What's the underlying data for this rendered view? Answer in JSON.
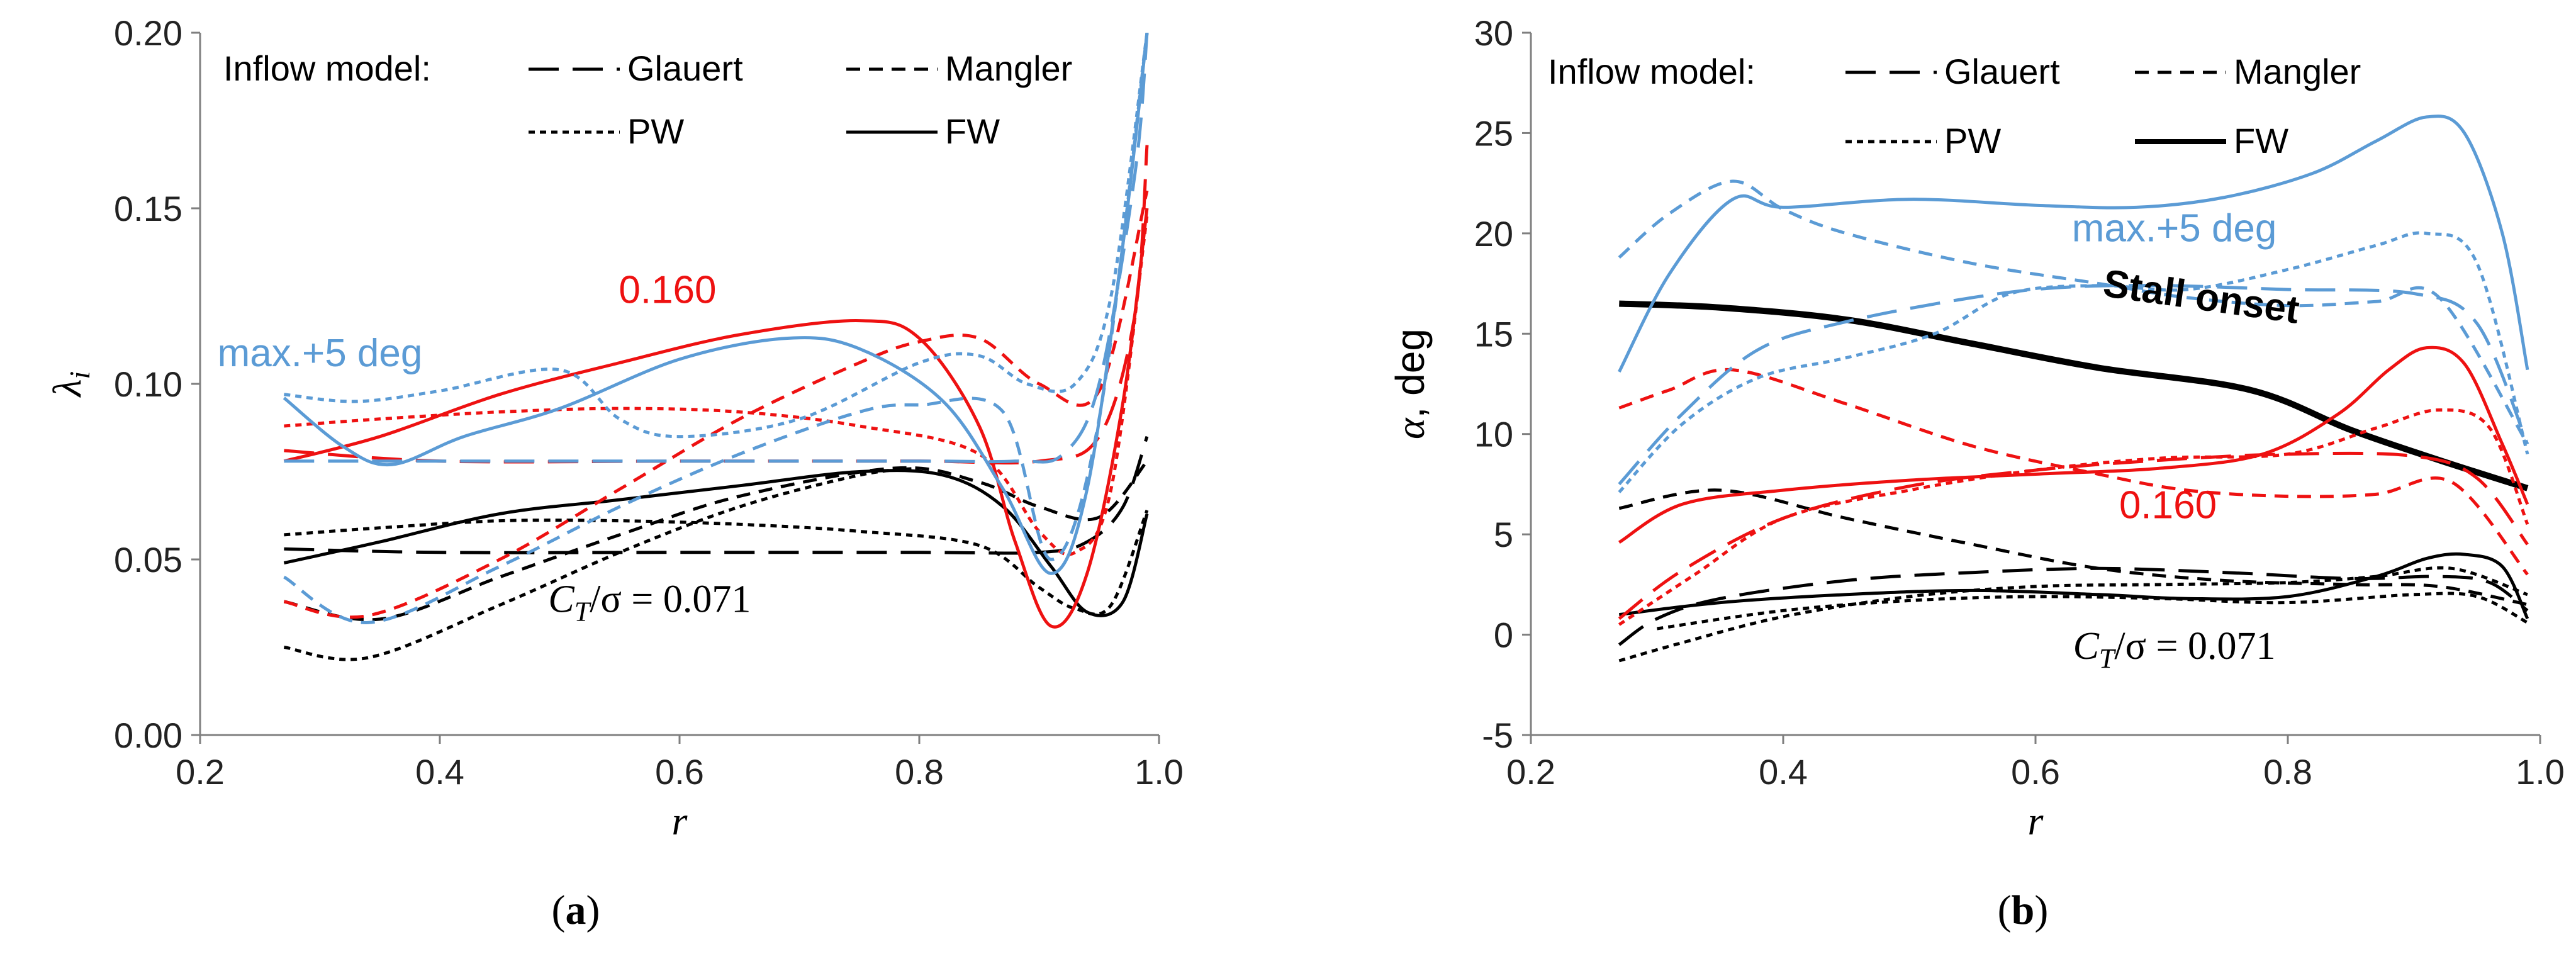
{
  "colors": {
    "black": "#000000",
    "red": "#ee1111",
    "blue": "#5b9bd5",
    "frame": "#7f7f7f"
  },
  "styles": {
    "Glauert": {
      "dash": "48,22",
      "width": 5
    },
    "Mangler": {
      "dash": "22,14",
      "width": 5
    },
    "PW": {
      "dash": "10,8",
      "width": 5
    },
    "FW": {
      "dash": "",
      "width": 5
    }
  },
  "chart_data": [
    {
      "type": "line",
      "panel": "a",
      "caption_label": "a",
      "xlabel": "r",
      "ylabel": "λ",
      "ylabel_sub": "i",
      "xlim": [
        0.2,
        1.0
      ],
      "ylim": [
        0.0,
        0.2
      ],
      "x_ticks": [
        "0.2",
        "0.4",
        "0.6",
        "0.8",
        "1.0"
      ],
      "x_tick_values": [
        0.2,
        0.4,
        0.6,
        0.8,
        1.0
      ],
      "y_ticks": [
        "0.00",
        "0.05",
        "0.10",
        "0.15",
        "0.20"
      ],
      "y_tick_values": [
        0.0,
        0.05,
        0.1,
        0.15,
        0.2
      ],
      "legend": {
        "title": "Inflow model:",
        "entries": [
          {
            "label": "Glauert",
            "model": "Glauert"
          },
          {
            "label": "Mangler",
            "model": "Mangler"
          },
          {
            "label": "PW",
            "model": "PW"
          },
          {
            "label": "FW",
            "model": "FW"
          }
        ]
      },
      "annotations": [
        {
          "text": "0.160",
          "color": "red",
          "x": 0.59,
          "y": 0.123
        },
        {
          "text": "max.+5 deg",
          "color": "blue",
          "x": 0.3,
          "y": 0.105
        }
      ],
      "math_annotation": {
        "prefix": "C",
        "sub": "T",
        "rest": "/σ = 0.071",
        "x": 0.575,
        "y": 0.035
      },
      "series": [
        {
          "name": "CT/σ=0.071 Glauert",
          "color": "black",
          "model": "Glauert",
          "x": [
            0.27,
            0.4,
            0.6,
            0.8,
            0.9,
            0.94,
            0.97,
            0.99
          ],
          "y": [
            0.053,
            0.052,
            0.052,
            0.052,
            0.052,
            0.055,
            0.065,
            0.085
          ]
        },
        {
          "name": "CT/σ=0.071 Mangler",
          "color": "black",
          "model": "Mangler",
          "x": [
            0.27,
            0.35,
            0.45,
            0.55,
            0.65,
            0.78,
            0.85,
            0.9,
            0.95,
            0.99
          ],
          "y": [
            0.038,
            0.033,
            0.045,
            0.057,
            0.068,
            0.076,
            0.072,
            0.065,
            0.062,
            0.078
          ]
        },
        {
          "name": "CT/σ=0.071 PW",
          "color": "black",
          "model": "PW",
          "x": [
            0.27,
            0.35,
            0.45,
            0.55,
            0.65,
            0.75,
            0.85,
            0.9,
            0.93,
            0.96,
            0.99
          ],
          "y": [
            0.057,
            0.059,
            0.061,
            0.061,
            0.06,
            0.058,
            0.054,
            0.042,
            0.036,
            0.037,
            0.064
          ]
        },
        {
          "name": "CT/σ=0.071 Mangler low",
          "color": "black",
          "model": "PW",
          "x": [
            0.27,
            0.34,
            0.45,
            0.55,
            0.65,
            0.75,
            0.8
          ],
          "y": [
            0.025,
            0.022,
            0.037,
            0.052,
            0.065,
            0.074,
            0.076
          ]
        },
        {
          "name": "CT/σ=0.071 FW",
          "color": "black",
          "model": "FW",
          "x": [
            0.27,
            0.35,
            0.45,
            0.55,
            0.65,
            0.75,
            0.82,
            0.87,
            0.91,
            0.94,
            0.97,
            0.99
          ],
          "y": [
            0.049,
            0.055,
            0.063,
            0.067,
            0.071,
            0.075,
            0.074,
            0.065,
            0.048,
            0.035,
            0.038,
            0.063
          ]
        },
        {
          "name": "CT/σ=0.160 Glauert",
          "color": "red",
          "model": "Glauert",
          "x": [
            0.27,
            0.4,
            0.6,
            0.8,
            0.9,
            0.95,
            0.98,
            0.99
          ],
          "y": [
            0.081,
            0.078,
            0.078,
            0.078,
            0.078,
            0.085,
            0.12,
            0.168
          ]
        },
        {
          "name": "CT/σ=0.160 Mangler",
          "color": "red",
          "model": "Mangler",
          "x": [
            0.27,
            0.34,
            0.45,
            0.55,
            0.65,
            0.75,
            0.8,
            0.85,
            0.9,
            0.95,
            0.99
          ],
          "y": [
            0.038,
            0.034,
            0.05,
            0.07,
            0.09,
            0.106,
            0.112,
            0.113,
            0.1,
            0.098,
            0.155
          ]
        },
        {
          "name": "CT/σ=0.160 PW",
          "color": "red",
          "model": "PW",
          "x": [
            0.27,
            0.35,
            0.45,
            0.55,
            0.65,
            0.75,
            0.85,
            0.9,
            0.93,
            0.96,
            0.99
          ],
          "y": [
            0.088,
            0.09,
            0.092,
            0.093,
            0.092,
            0.088,
            0.08,
            0.058,
            0.052,
            0.07,
            0.148
          ]
        },
        {
          "name": "CT/σ=0.160 FW",
          "color": "red",
          "model": "FW",
          "x": [
            0.27,
            0.35,
            0.45,
            0.55,
            0.65,
            0.75,
            0.8,
            0.85,
            0.88,
            0.91,
            0.94,
            0.97,
            0.99
          ],
          "y": [
            0.078,
            0.085,
            0.097,
            0.106,
            0.114,
            0.118,
            0.113,
            0.088,
            0.055,
            0.031,
            0.046,
            0.095,
            0.15
          ]
        },
        {
          "name": "max.+5 deg Glauert",
          "color": "blue",
          "model": "Glauert",
          "x": [
            0.27,
            0.4,
            0.6,
            0.8,
            0.88,
            0.92,
            0.95,
            0.98,
            0.99
          ],
          "y": [
            0.078,
            0.078,
            0.078,
            0.078,
            0.078,
            0.08,
            0.1,
            0.16,
            0.2
          ]
        },
        {
          "name": "max.+5 deg Mangler",
          "color": "blue",
          "model": "Mangler",
          "x": [
            0.27,
            0.34,
            0.45,
            0.55,
            0.65,
            0.75,
            0.8,
            0.87,
            0.91,
            0.95,
            0.99
          ],
          "y": [
            0.045,
            0.032,
            0.048,
            0.065,
            0.08,
            0.092,
            0.094,
            0.092,
            0.05,
            0.09,
            0.2
          ]
        },
        {
          "name": "max.+5 deg PW",
          "color": "blue",
          "model": "PW",
          "x": [
            0.27,
            0.33,
            0.4,
            0.5,
            0.55,
            0.6,
            0.7,
            0.8,
            0.85,
            0.89,
            0.93,
            0.96,
            0.99
          ],
          "y": [
            0.097,
            0.095,
            0.098,
            0.104,
            0.09,
            0.085,
            0.09,
            0.106,
            0.108,
            0.1,
            0.1,
            0.125,
            0.2
          ]
        },
        {
          "name": "max.+5 deg FW",
          "color": "blue",
          "model": "FW",
          "x": [
            0.27,
            0.32,
            0.36,
            0.42,
            0.5,
            0.6,
            0.69,
            0.75,
            0.82,
            0.87,
            0.91,
            0.94,
            0.97,
            0.99
          ],
          "y": [
            0.096,
            0.082,
            0.077,
            0.085,
            0.093,
            0.107,
            0.113,
            0.11,
            0.095,
            0.07,
            0.046,
            0.07,
            0.14,
            0.2
          ]
        }
      ]
    },
    {
      "type": "line",
      "panel": "b",
      "caption_label": "b",
      "xlabel": "r",
      "ylabel": "α, deg",
      "xlim": [
        0.2,
        1.0
      ],
      "ylim": [
        -5,
        30
      ],
      "x_ticks": [
        "0.2",
        "0.4",
        "0.6",
        "0.8",
        "1.0"
      ],
      "x_tick_values": [
        0.2,
        0.4,
        0.6,
        0.8,
        1.0
      ],
      "y_ticks": [
        "-5",
        "0",
        "5",
        "10",
        "15",
        "20",
        "25",
        "30"
      ],
      "y_tick_values": [
        -5,
        0,
        5,
        10,
        15,
        20,
        25,
        30
      ],
      "legend": {
        "title": "Inflow model:",
        "entries": [
          {
            "label": "Glauert",
            "model": "Glauert"
          },
          {
            "label": "Mangler",
            "model": "Mangler"
          },
          {
            "label": "PW",
            "model": "PW"
          },
          {
            "label": "FW",
            "model": "FW"
          }
        ]
      },
      "annotations": [
        {
          "text": "max.+5 deg",
          "color": "blue",
          "x": 0.71,
          "y": 19.6
        },
        {
          "text": "Stall onset",
          "color": "black",
          "x": 0.73,
          "y": 16.2,
          "bold": true,
          "rotate": 8
        },
        {
          "text": "0.160",
          "color": "red",
          "x": 0.705,
          "y": 5.8
        }
      ],
      "math_annotation": {
        "prefix": "C",
        "sub": "T",
        "rest": "/σ = 0.071",
        "x": 0.71,
        "y": -1.2
      },
      "series": [
        {
          "name": "Stall onset",
          "color": "black",
          "model": "FW",
          "thick": true,
          "x": [
            0.27,
            0.35,
            0.45,
            0.55,
            0.65,
            0.77,
            0.85,
            0.92,
            0.99
          ],
          "y": [
            16.5,
            16.3,
            15.7,
            14.5,
            13.3,
            12.2,
            10.2,
            8.7,
            7.3
          ]
        },
        {
          "name": "CT/σ=0.071 Glauert",
          "color": "black",
          "model": "Glauert",
          "x": [
            0.27,
            0.3,
            0.35,
            0.45,
            0.55,
            0.65,
            0.75,
            0.85,
            0.92,
            0.96,
            0.99
          ],
          "y": [
            -0.5,
            0.8,
            1.8,
            2.7,
            3.1,
            3.3,
            3.1,
            2.8,
            2.9,
            2.6,
            1.2
          ]
        },
        {
          "name": "CT/σ=0.071 Mangler",
          "color": "black",
          "model": "Mangler",
          "x": [
            0.27,
            0.35,
            0.45,
            0.55,
            0.65,
            0.75,
            0.85,
            0.92,
            0.99
          ],
          "y": [
            6.3,
            7.2,
            5.8,
            4.5,
            3.3,
            2.7,
            2.5,
            2.4,
            1.5
          ]
        },
        {
          "name": "CT/σ=0.071 PW",
          "color": "black",
          "model": "PW",
          "x": [
            0.27,
            0.32,
            0.4,
            0.5,
            0.6,
            0.7,
            0.8,
            0.87,
            0.93,
            0.99
          ],
          "y": [
            -1.3,
            -0.4,
            0.9,
            1.9,
            2.4,
            2.5,
            2.6,
            2.9,
            3.3,
            2.0
          ]
        },
        {
          "name": "CT/σ=0.071 PW low",
          "color": "black",
          "model": "PW",
          "x": [
            0.3,
            0.4,
            0.5,
            0.6,
            0.7,
            0.8,
            0.9,
            0.95,
            0.99
          ],
          "y": [
            0.3,
            1.2,
            1.7,
            1.9,
            1.8,
            1.6,
            2.0,
            1.9,
            0.6
          ]
        },
        {
          "name": "CT/σ=0.071 FW",
          "color": "black",
          "model": "FW",
          "x": [
            0.27,
            0.35,
            0.45,
            0.55,
            0.65,
            0.72,
            0.8,
            0.87,
            0.91,
            0.94,
            0.97,
            0.99
          ],
          "y": [
            1.0,
            1.6,
            2.0,
            2.2,
            2.0,
            1.8,
            1.9,
            2.9,
            3.8,
            4.0,
            3.4,
            0.8
          ]
        },
        {
          "name": "CT/σ=0.160 Glauert",
          "color": "red",
          "model": "Glauert",
          "x": [
            0.27,
            0.32,
            0.4,
            0.5,
            0.6,
            0.7,
            0.8,
            0.9,
            0.95,
            0.99
          ],
          "y": [
            0.8,
            3.2,
            5.8,
            7.4,
            8.2,
            8.7,
            9.0,
            8.9,
            7.8,
            4.5
          ]
        },
        {
          "name": "CT/σ=0.160 Mangler",
          "color": "red",
          "model": "Mangler",
          "x": [
            0.27,
            0.31,
            0.36,
            0.45,
            0.55,
            0.65,
            0.72,
            0.8,
            0.87,
            0.93,
            0.99
          ],
          "y": [
            11.3,
            12.2,
            13.2,
            11.5,
            9.4,
            8.0,
            7.2,
            6.9,
            7.0,
            7.6,
            3.0
          ]
        },
        {
          "name": "CT/σ=0.160 PW",
          "color": "red",
          "model": "PW",
          "x": [
            0.27,
            0.33,
            0.4,
            0.5,
            0.6,
            0.7,
            0.8,
            0.87,
            0.92,
            0.96,
            0.99
          ],
          "y": [
            0.5,
            3.0,
            5.8,
            7.2,
            8.2,
            8.8,
            9.0,
            10.3,
            11.2,
            10.3,
            5.5
          ]
        },
        {
          "name": "CT/σ=0.160 FW",
          "color": "red",
          "model": "FW",
          "x": [
            0.27,
            0.32,
            0.4,
            0.5,
            0.6,
            0.7,
            0.78,
            0.84,
            0.88,
            0.91,
            0.94,
            0.97,
            0.99
          ],
          "y": [
            4.6,
            6.5,
            7.2,
            7.7,
            8.0,
            8.3,
            9.0,
            11.0,
            13.2,
            14.3,
            13.5,
            9.5,
            6.5
          ]
        },
        {
          "name": "max.+5 deg Glauert",
          "color": "blue",
          "model": "Glauert",
          "x": [
            0.27,
            0.32,
            0.38,
            0.45,
            0.55,
            0.62,
            0.7,
            0.8,
            0.9,
            0.95,
            0.99
          ],
          "y": [
            7.5,
            11.0,
            14.2,
            15.6,
            16.8,
            17.3,
            17.4,
            17.2,
            17.0,
            15.5,
            9.5
          ]
        },
        {
          "name": "max.+5 deg Mangler",
          "color": "blue",
          "model": "Mangler",
          "x": [
            0.27,
            0.31,
            0.36,
            0.4,
            0.45,
            0.55,
            0.65,
            0.72,
            0.8,
            0.87,
            0.92,
            0.99
          ],
          "y": [
            18.8,
            21.0,
            22.6,
            21.2,
            20.0,
            18.5,
            17.5,
            16.8,
            16.4,
            16.6,
            16.8,
            9.5
          ]
        },
        {
          "name": "max.+5 deg PW",
          "color": "blue",
          "model": "PW",
          "x": [
            0.27,
            0.32,
            0.38,
            0.45,
            0.52,
            0.58,
            0.65,
            0.72,
            0.8,
            0.87,
            0.91,
            0.95,
            0.99
          ],
          "y": [
            7.1,
            10.5,
            12.8,
            13.8,
            15.0,
            17.0,
            17.4,
            17.2,
            18.2,
            19.4,
            20.0,
            18.5,
            9.0
          ]
        },
        {
          "name": "max.+5 deg FW",
          "color": "blue",
          "model": "FW",
          "x": [
            0.27,
            0.31,
            0.36,
            0.4,
            0.5,
            0.6,
            0.68,
            0.75,
            0.82,
            0.87,
            0.91,
            0.94,
            0.97,
            0.99
          ],
          "y": [
            13.1,
            18.0,
            21.7,
            21.3,
            21.7,
            21.4,
            21.3,
            21.8,
            23.0,
            24.6,
            25.8,
            25.0,
            20.0,
            13.2
          ]
        }
      ]
    }
  ]
}
